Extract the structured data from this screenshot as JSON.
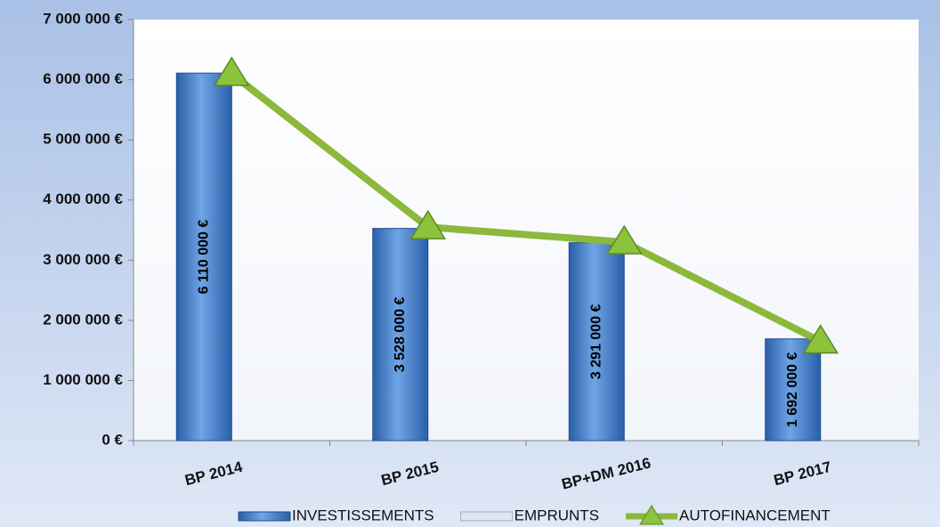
{
  "chart_data": {
    "type": "bar",
    "categories": [
      "BP 2014",
      "BP 2015",
      "BP+DM 2016",
      "BP 2017"
    ],
    "series": [
      {
        "name": "INVESTISSEMENTS",
        "type": "bar",
        "color": "#3a78c8",
        "values": [
          6110000,
          3528000,
          3291000,
          1692000
        ],
        "value_labels": [
          "6 110 000 €",
          "3 528 000 €",
          "3 291 000 €",
          "1 692 000 €"
        ]
      },
      {
        "name": "EMPRUNTS",
        "type": "bar",
        "color": "#dfe6f0",
        "values": [
          0,
          0,
          0,
          0
        ]
      },
      {
        "name": "AUTOFINANCEMENT",
        "type": "line",
        "color": "#8cb83c",
        "values": [
          6100000,
          3550000,
          3300000,
          1650000
        ]
      }
    ],
    "ylim": [
      0,
      7000000
    ],
    "yticks": [
      {
        "value": 0,
        "label": "0 €"
      },
      {
        "value": 1000000,
        "label": "1 000 000 €"
      },
      {
        "value": 2000000,
        "label": "2 000 000 €"
      },
      {
        "value": 3000000,
        "label": "3 000 000 €"
      },
      {
        "value": 4000000,
        "label": "4 000 000 €"
      },
      {
        "value": 5000000,
        "label": "5 000 000 €"
      },
      {
        "value": 6000000,
        "label": "6 000 000 €"
      },
      {
        "value": 7000000,
        "label": "7 000 000 €"
      }
    ],
    "legend": "bottom"
  }
}
